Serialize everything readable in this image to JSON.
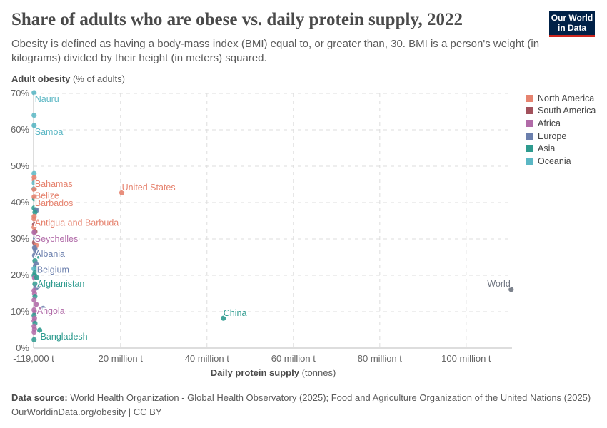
{
  "title": "Share of adults who are obese vs. daily protein supply, 2022",
  "subtitle": "Obesity is defined as having a body-mass index (BMI) equal to, or greater than, 30. BMI is a person's weight (in kilograms) divided by their height (in meters) squared.",
  "logo": {
    "line1": "Our World",
    "line2": "in Data"
  },
  "footer": {
    "source_label": "Data source:",
    "source": "World Health Organization - Global Health Observatory (2025); Food and Agriculture Organization of the United Nations (2025)",
    "url": "OurWorldinData.org/obesity | CC BY"
  },
  "chart_data": {
    "type": "scatter",
    "title": "Share of adults who are obese vs. daily protein supply, 2022",
    "ylabel_bold": "Adult obesity",
    "ylabel_unit": "(% of adults)",
    "xlabel_bold": "Daily protein supply",
    "xlabel_unit": "(tonnes)",
    "xlim": [
      -0.119,
      110.6
    ],
    "ylim": [
      0,
      70
    ],
    "x_unit": "million tonnes",
    "xticks": [
      {
        "v": -0.119,
        "label": "-119,000 t"
      },
      {
        "v": 20,
        "label": "20 million t"
      },
      {
        "v": 40,
        "label": "40 million t"
      },
      {
        "v": 60,
        "label": "60 million t"
      },
      {
        "v": 80,
        "label": "80 million t"
      },
      {
        "v": 100,
        "label": "100 million t"
      }
    ],
    "yticks": [
      {
        "v": 0,
        "label": "0%"
      },
      {
        "v": 10,
        "label": "10%"
      },
      {
        "v": 20,
        "label": "20%"
      },
      {
        "v": 30,
        "label": "30%"
      },
      {
        "v": 40,
        "label": "40%"
      },
      {
        "v": 50,
        "label": "50%"
      },
      {
        "v": 60,
        "label": "60%"
      },
      {
        "v": 70,
        "label": "70%"
      }
    ],
    "grid": true,
    "legend_position": "right",
    "regions": [
      {
        "name": "North America",
        "color": "#e6836f"
      },
      {
        "name": "South America",
        "color": "#a2515c"
      },
      {
        "name": "Africa",
        "color": "#b16ba8"
      },
      {
        "name": "Europe",
        "color": "#6b7fad"
      },
      {
        "name": "Asia",
        "color": "#2e9b8f"
      },
      {
        "name": "Oceania",
        "color": "#5bb7c4"
      },
      {
        "name": "World",
        "color": "#6e7480"
      }
    ],
    "labeled_points": [
      {
        "name": "Nauru",
        "x": 0.001,
        "y": 70.2,
        "region": "Oceania"
      },
      {
        "name": "Samoa",
        "x": 0.01,
        "y": 61.2,
        "region": "Oceania"
      },
      {
        "name": "Bahamas",
        "x": 0.02,
        "y": 46.9,
        "region": "North America"
      },
      {
        "name": "Belize",
        "x": 0.02,
        "y": 43.6,
        "region": "North America"
      },
      {
        "name": "Barbados",
        "x": 0.02,
        "y": 41.6,
        "region": "North America"
      },
      {
        "name": "Antigua and Barbuda",
        "x": 0.01,
        "y": 36.2,
        "region": "North America"
      },
      {
        "name": "Seychelles",
        "x": 0.01,
        "y": 31.8,
        "region": "Africa"
      },
      {
        "name": "Albania",
        "x": 0.1,
        "y": 27.6,
        "region": "Europe"
      },
      {
        "name": "Belgium",
        "x": 0.5,
        "y": 23.2,
        "region": "Europe"
      },
      {
        "name": "Afghanistan",
        "x": 0.6,
        "y": 19.4,
        "region": "Asia"
      },
      {
        "name": "Angola",
        "x": 0.5,
        "y": 12.0,
        "region": "Africa"
      },
      {
        "name": "Bangladesh",
        "x": 1.3,
        "y": 4.9,
        "region": "Asia"
      },
      {
        "name": "United States",
        "x": 20.3,
        "y": 42.7,
        "region": "North America"
      },
      {
        "name": "China",
        "x": 43.8,
        "y": 8.2,
        "region": "Asia"
      },
      {
        "name": "World",
        "x": 110.4,
        "y": 16.1,
        "region": "World"
      }
    ],
    "other_points": [
      [
        0.0,
        64.0,
        "Oceania"
      ],
      [
        0.0,
        48.0,
        "Oceania"
      ],
      [
        0.05,
        46.2,
        "North America"
      ],
      [
        0.03,
        45.4,
        "Oceania"
      ],
      [
        0.0,
        43.8,
        "Oceania"
      ],
      [
        0.1,
        41.0,
        "Asia"
      ],
      [
        0.0,
        38.5,
        "Asia"
      ],
      [
        0.3,
        38.0,
        "Asia"
      ],
      [
        0.6,
        37.9,
        "Europe"
      ],
      [
        0.2,
        37.3,
        "Asia"
      ],
      [
        0.0,
        35.5,
        "North America"
      ],
      [
        3.1,
        34.2,
        "Asia"
      ],
      [
        0.1,
        34.0,
        "South America"
      ],
      [
        0.0,
        33.2,
        "North America"
      ],
      [
        0.2,
        32.0,
        "South America"
      ],
      [
        1.6,
        30.0,
        "Africa"
      ],
      [
        0.3,
        30.2,
        "Europe"
      ],
      [
        0.1,
        29.0,
        "South America"
      ],
      [
        0.5,
        28.3,
        "North America"
      ],
      [
        0.3,
        27.0,
        "Europe"
      ],
      [
        0.7,
        26.5,
        "Europe"
      ],
      [
        0.1,
        25.5,
        "Europe"
      ],
      [
        1.0,
        25.3,
        "Asia"
      ],
      [
        0.2,
        24.0,
        "Asia"
      ],
      [
        0.3,
        22.5,
        "Europe"
      ],
      [
        0.6,
        22.0,
        "Asia"
      ],
      [
        0.9,
        21.6,
        "Europe"
      ],
      [
        0.0,
        21.8,
        "Oceania"
      ],
      [
        0.2,
        20.7,
        "Asia"
      ],
      [
        0.0,
        20.0,
        "Asia"
      ],
      [
        0.1,
        19.3,
        "Africa"
      ],
      [
        0.2,
        17.6,
        "Asia"
      ],
      [
        0.9,
        17.0,
        "Europe"
      ],
      [
        0.4,
        16.5,
        "Europe"
      ],
      [
        0.0,
        15.8,
        "Africa"
      ],
      [
        0.1,
        15.0,
        "Africa"
      ],
      [
        0.2,
        14.2,
        "Asia"
      ],
      [
        0.0,
        13.2,
        "Africa"
      ],
      [
        2.1,
        10.9,
        "Europe"
      ],
      [
        0.0,
        10.5,
        "Africa"
      ],
      [
        0.2,
        9.8,
        "Africa"
      ],
      [
        0.0,
        9.0,
        "Asia"
      ],
      [
        0.1,
        8.2,
        "Africa"
      ],
      [
        0.0,
        7.5,
        "Africa"
      ],
      [
        0.2,
        6.8,
        "Asia"
      ],
      [
        0.0,
        6.0,
        "Africa"
      ],
      [
        0.1,
        5.2,
        "Africa"
      ],
      [
        0.0,
        4.4,
        "Africa"
      ],
      [
        0.0,
        2.3,
        "Asia"
      ]
    ]
  }
}
